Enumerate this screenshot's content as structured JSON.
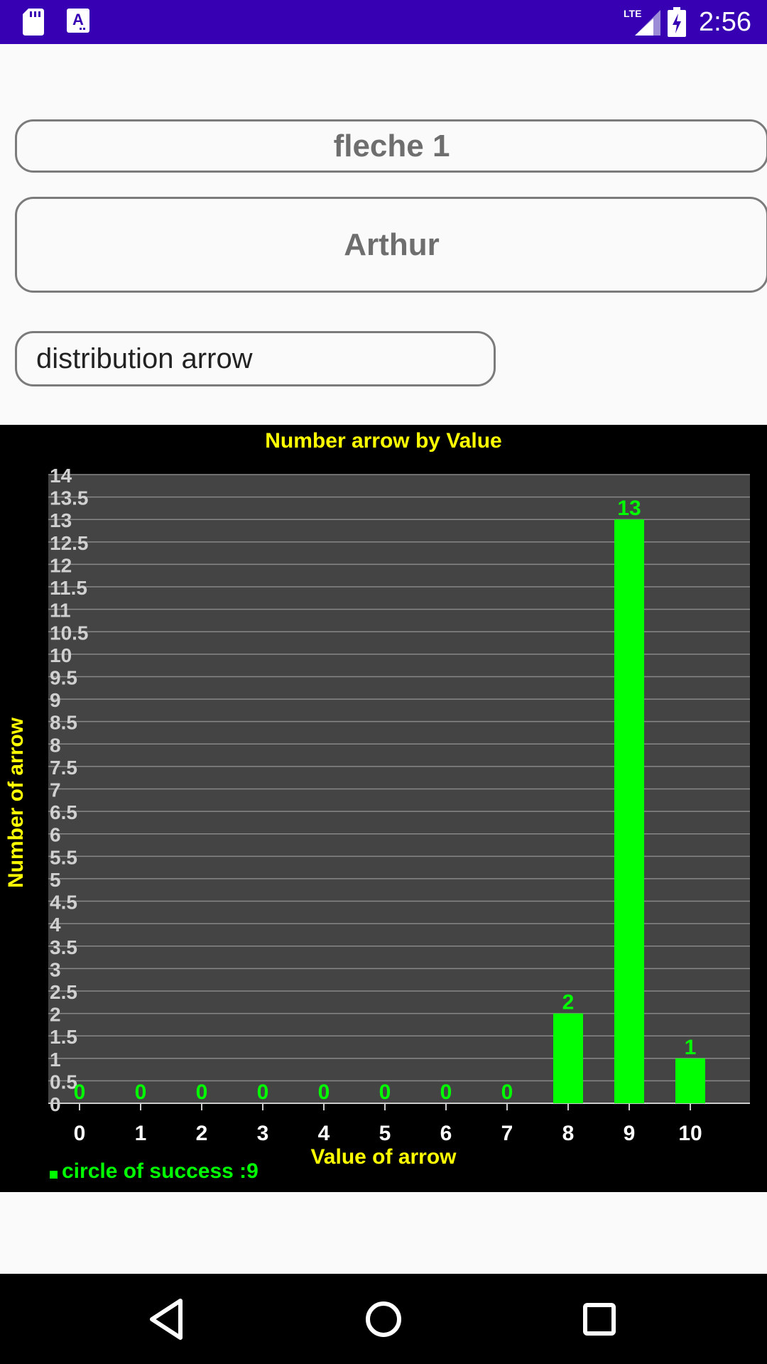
{
  "status_bar": {
    "time": "2:56",
    "network": "LTE",
    "icons": [
      "sd-card-icon",
      "a-notification-icon",
      "lte-signal-icon",
      "battery-charging-icon"
    ]
  },
  "title_box": {
    "text": "fleche 1"
  },
  "name_box": {
    "text": "Arthur"
  },
  "dropdown": {
    "selected": "distribution arrow"
  },
  "chart_data": {
    "type": "bar",
    "title": "Number arrow by Value",
    "xlabel": "Value of arrow",
    "ylabel": "Number of arrow",
    "categories": [
      "0",
      "1",
      "2",
      "3",
      "4",
      "5",
      "6",
      "7",
      "8",
      "9",
      "10"
    ],
    "values": [
      0,
      0,
      0,
      0,
      0,
      0,
      0,
      0,
      2,
      13,
      1
    ],
    "value_labels": [
      "0",
      "0",
      "0",
      "0",
      "0",
      "0",
      "0",
      "0",
      "2",
      "13",
      "1"
    ],
    "ylim": [
      0,
      14
    ],
    "yticks": [
      "0",
      "0.5",
      "1",
      "1.5",
      "2",
      "2.5",
      "3",
      "3.5",
      "4",
      "4.5",
      "5",
      "5.5",
      "6",
      "6.5",
      "7",
      "7.5",
      "8",
      "8.5",
      "9",
      "9.5",
      "10",
      "10.5",
      "11",
      "11.5",
      "12",
      "12.5",
      "13",
      "13.5",
      "14"
    ],
    "grid": true,
    "legend": {
      "position": "bottom-left",
      "entries": [
        {
          "label": "circle of success :9"
        }
      ]
    },
    "colors": {
      "bar": "#00ff00",
      "plot_bg": "#444444",
      "title": "#ffff00",
      "ticks": "#d0d0d0",
      "grid": "#888888"
    }
  },
  "nav_bar": {
    "buttons": [
      "back-icon",
      "home-icon",
      "recents-icon"
    ]
  }
}
